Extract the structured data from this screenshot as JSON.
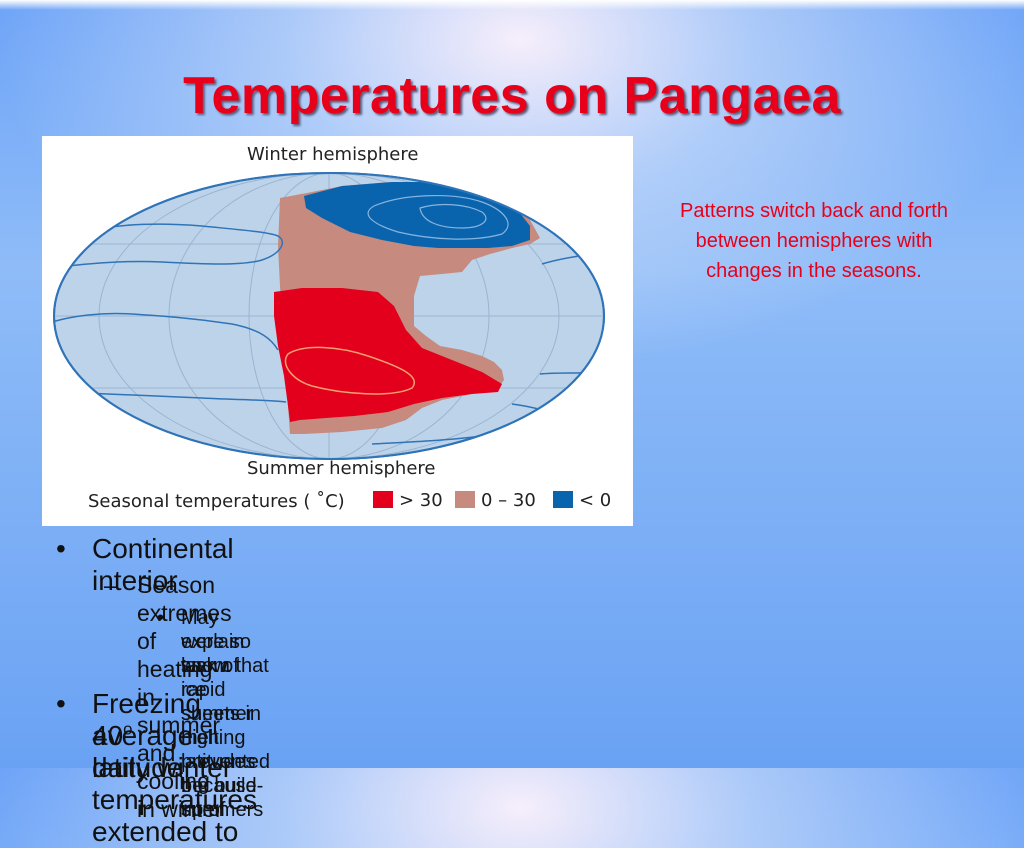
{
  "title": "Temperatures on Pangaea",
  "figure": {
    "top_label": "Winter hemisphere",
    "bottom_label": "Summer hemisphere",
    "legend": {
      "title": "Seasonal temperatures ( ˚C)",
      "items": [
        {
          "label": "> 30",
          "color": "#e3001c"
        },
        {
          "label": "0 – 30",
          "color": "#c68a7e"
        },
        {
          "label": "< 0",
          "color": "#0a64ad"
        }
      ]
    },
    "colors": {
      "ocean": "#bcd3ea",
      "outline": "#2f74b8",
      "hot": "#e3001c",
      "mild": "#c68a7e",
      "cold": "#0a64ad"
    }
  },
  "side_note": {
    "lines": [
      "Patterns switch back and forth",
      "between hemispheres with",
      "changes in the seasons."
    ]
  },
  "bullets": {
    "l1_marker": "•",
    "l2_marker": "–",
    "l3_marker": "•",
    "item1": "Continental interior",
    "item1_sub": "Season extremes of heating in summer and cooling in winter",
    "item1_subsub_lines": [
      "May explain lack of ice sheets in high latitudes because summers",
      "were so warm that rapid summer melting prevented the build-up of",
      "snow."
    ],
    "item2_line1": "Freezing average daily winter temperatures extended to",
    "item2_line2_prefix": "40",
    "item2_sup": "o",
    "item2_line2_suffix": " latitude"
  }
}
